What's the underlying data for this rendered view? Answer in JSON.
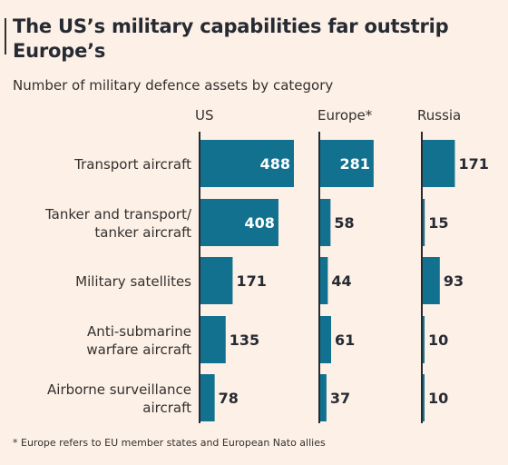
{
  "title": "The US’s military capabilities far outstrip Europe’s",
  "subtitle": "Number of military defence assets by category",
  "footnote": "* Europe refers to EU member states and European Nato allies",
  "colors": {
    "bar": "#12718f",
    "axis": "#262a33",
    "background": "#fdf0e6",
    "text": "#33302e",
    "label_inside": "#ffffff"
  },
  "chart_data": {
    "type": "bar",
    "orientation": "horizontal",
    "layout": "small-multiples",
    "categories": [
      [
        "Transport aircraft"
      ],
      [
        "Tanker and transport/",
        "tanker aircraft"
      ],
      [
        "Military satellites"
      ],
      [
        "Anti-submarine",
        "warfare aircraft"
      ],
      [
        "Airborne surveillance",
        "aircraft"
      ]
    ],
    "series": [
      {
        "name": "US",
        "values": [
          488,
          408,
          171,
          135,
          78
        ]
      },
      {
        "name": "Europe*",
        "values": [
          281,
          58,
          44,
          61,
          37
        ]
      },
      {
        "name": "Russia",
        "values": [
          171,
          15,
          93,
          10,
          10
        ]
      }
    ]
  }
}
